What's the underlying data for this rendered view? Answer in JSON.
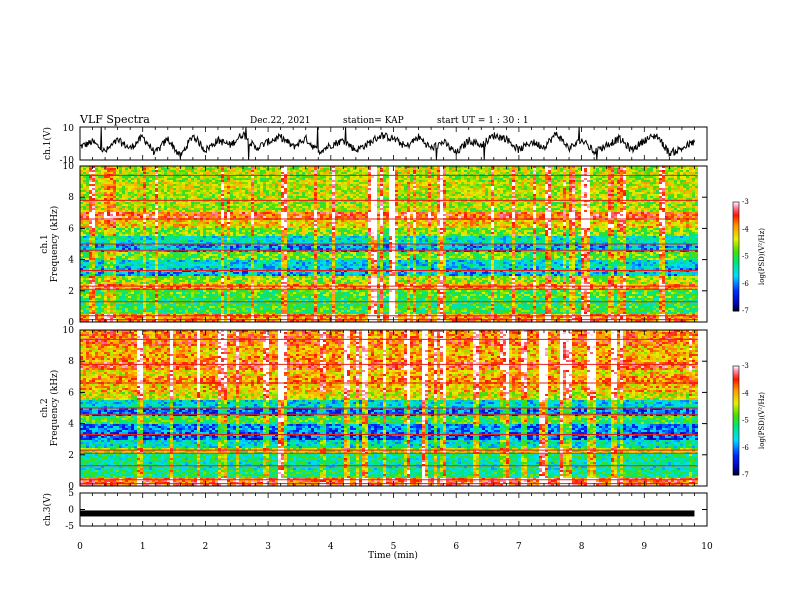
{
  "header": {
    "title": "VLF Spectra",
    "date": "Dec.22, 2021",
    "station": "station= KAP",
    "start": "start  UT =   1 : 30 : 1"
  },
  "chart_data": [
    {
      "type": "line",
      "name": "ch1-waveform",
      "ylabel": "ch.1(V)",
      "ylim": [
        -10,
        10
      ],
      "yticks": [
        "10",
        "-10"
      ],
      "xlim": [
        0,
        10
      ],
      "x_sample_min": [
        0.0,
        0.2,
        0.4,
        0.6,
        0.8,
        1.0,
        1.2,
        1.4,
        1.6,
        1.8,
        2.0,
        2.2,
        2.4,
        2.6,
        2.8,
        3.0,
        3.2,
        3.4,
        3.6,
        3.8,
        4.0,
        4.2,
        4.4,
        4.6,
        4.8,
        5.0,
        5.2,
        5.4,
        5.6,
        5.8,
        6.0,
        6.2,
        6.4,
        6.6,
        6.8,
        7.0,
        7.2,
        7.4,
        7.6,
        7.8,
        8.0,
        8.2,
        8.4,
        8.6,
        8.8,
        9.0,
        9.2,
        9.4,
        9.6,
        9.8
      ],
      "values": [
        -2,
        1,
        -5,
        2,
        -3,
        4,
        -6,
        3,
        -8,
        5,
        -4,
        2,
        -1,
        6,
        -3,
        1,
        4,
        -2,
        3,
        -5,
        -1,
        2,
        -4,
        0,
        5,
        3,
        -2,
        4,
        -3,
        1,
        -6,
        2,
        -1,
        5,
        3,
        -4,
        1,
        -2,
        6,
        -3,
        2,
        -5,
        -1,
        3,
        -4,
        2,
        5,
        -6,
        -3,
        1
      ]
    },
    {
      "type": "heatmap",
      "name": "ch1-spectrogram",
      "ylabel": "ch.1 Frequency (kHz)",
      "ylim": [
        0,
        10
      ],
      "yticks": [
        "0",
        "2",
        "4",
        "6",
        "8",
        "10"
      ],
      "xlim": [
        0,
        10
      ],
      "colorbar": {
        "label": "log(PSD)(V²/Hz)",
        "ticks": [
          "-3",
          "-4",
          "-5",
          "-6",
          "-7"
        ],
        "range": [
          -7,
          -3
        ]
      },
      "freq_band_khz": [
        0,
        0.5,
        1,
        1.5,
        2,
        2.5,
        3,
        3.5,
        4,
        4.5,
        5,
        5.5,
        6,
        6.5,
        7,
        7.5,
        8,
        8.5,
        9,
        9.5
      ],
      "log_psd": [
        -3.8,
        -5.0,
        -5.1,
        -4.9,
        -3.9,
        -4.6,
        -5.8,
        -5.6,
        -4.8,
        -5.9,
        -5.5,
        -4.7,
        -4.2,
        -3.6,
        -4.5,
        -4.6,
        -4.5,
        -4.4,
        -4.6,
        -4.5
      ]
    },
    {
      "type": "heatmap",
      "name": "ch2-spectrogram",
      "ylabel": "ch.2 Frequency (kHz)",
      "ylim": [
        0,
        10
      ],
      "yticks": [
        "0",
        "2",
        "4",
        "6",
        "8",
        "10"
      ],
      "xlim": [
        0,
        10
      ],
      "colorbar": {
        "label": "log(PSD)(V²/Hz)",
        "ticks": [
          "-3",
          "-4",
          "-5",
          "-6",
          "-7"
        ],
        "range": [
          -7,
          -3
        ]
      },
      "freq_band_khz": [
        0,
        0.5,
        1,
        1.5,
        2,
        2.5,
        3,
        3.5,
        4,
        4.5,
        5,
        5.5,
        6,
        6.5,
        7,
        7.5,
        8,
        8.5,
        9,
        9.5
      ],
      "log_psd": [
        -3.6,
        -5.2,
        -5.4,
        -5.3,
        -4.6,
        -5.5,
        -6.2,
        -6.0,
        -5.0,
        -6.1,
        -5.6,
        -4.4,
        -4.1,
        -3.9,
        -4.2,
        -3.6,
        -4.0,
        -4.1,
        -3.7,
        -3.8
      ]
    },
    {
      "type": "line",
      "name": "ch3-waveform",
      "ylabel": "ch.3(V)",
      "ylim": [
        -5,
        5
      ],
      "yticks": [
        "5",
        "0",
        "-5"
      ],
      "xlim": [
        0,
        9.8
      ],
      "values": [
        -1.2,
        -1.2
      ]
    }
  ],
  "xaxis": {
    "label": "Time  (min)",
    "ticks": [
      "0",
      "1",
      "2",
      "3",
      "4",
      "5",
      "6",
      "7",
      "8",
      "9",
      "10"
    ]
  }
}
